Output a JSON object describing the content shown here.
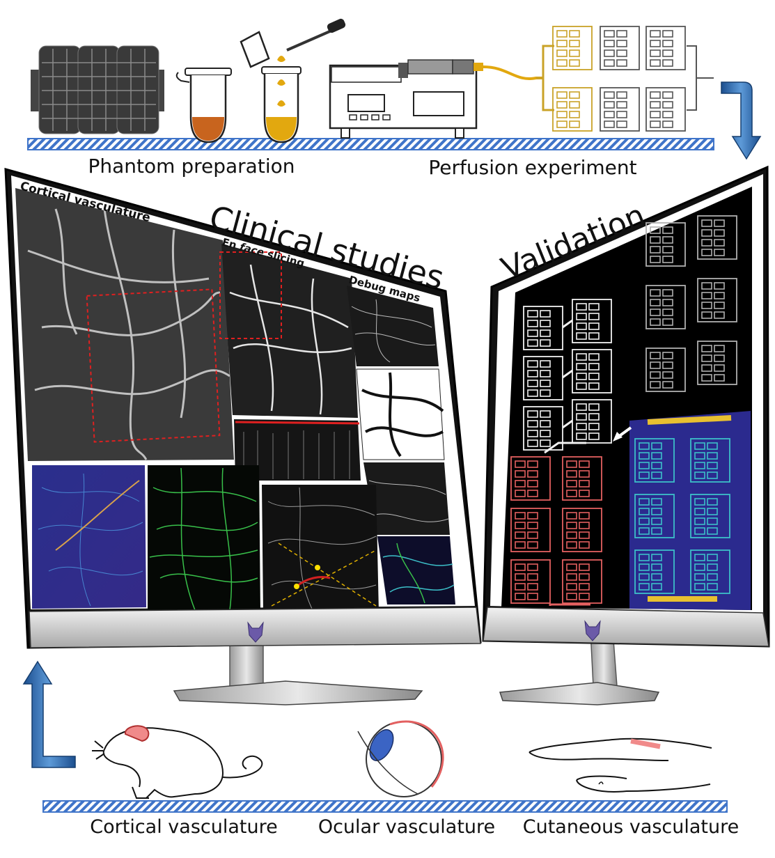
{
  "captions": {
    "phantom_preparation": "Phantom preparation",
    "perfusion_experiment": "Perfusion experiment",
    "cortical_vasculature": "Cortical vasculature",
    "ocular_vasculature": "Ocular vasculature",
    "cutaneous_vasculature": "Cutaneous vasculature"
  },
  "monitor_left": {
    "heading": "Clinical studies",
    "panel_cortical": "Cortical vasculature",
    "panel_enface_prefix": "En ",
    "panel_enface_italic": "face",
    "panel_enface_suffix": " slicing",
    "panel_debug": "Debug maps"
  },
  "monitor_right": {
    "heading": "Validation"
  },
  "colors": {
    "platform_stripe": "#3f74c9",
    "flow_arrow": "#2e6db4",
    "screen_bg": "#000000",
    "heatmap_bg": "#2b2a8e",
    "vessel_green": "#38c04a",
    "phantom_gold": "#c9a227",
    "phantom_red": "#d84b4b",
    "phantom_cyan": "#3cc0c9",
    "fluid_orange": "#c8641e",
    "fluid_yellow": "#e2a80f",
    "tissue_pink": "#f08a8a"
  },
  "icons": [
    "phantom-mold-icon",
    "tube-icon",
    "pipette-icon",
    "syringe-pump-icon",
    "phantom-chip-icon",
    "mouse-icon",
    "eye-icon",
    "hand-icon",
    "wolf-logo-icon",
    "pointer-arrow-icon"
  ]
}
